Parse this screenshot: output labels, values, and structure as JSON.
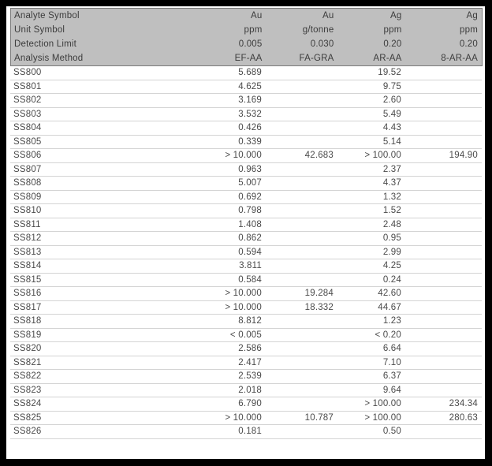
{
  "table": {
    "header_rows": [
      {
        "label": "Analyte Symbol",
        "values": [
          "Au",
          "Au",
          "Ag",
          "Ag"
        ]
      },
      {
        "label": "Unit Symbol",
        "values": [
          "ppm",
          "g/tonne",
          "ppm",
          "ppm"
        ]
      },
      {
        "label": "Detection Limit",
        "values": [
          "0.005",
          "0.030",
          "0.20",
          "0.20"
        ]
      },
      {
        "label": "Analysis Method",
        "values": [
          "EF-AA",
          "FA-GRA",
          "AR-AA",
          "8-AR-AA"
        ]
      }
    ],
    "samples": [
      {
        "id": "SS800",
        "values": [
          "5.689",
          "",
          "19.52",
          ""
        ]
      },
      {
        "id": "SS801",
        "values": [
          "4.625",
          "",
          "9.75",
          ""
        ]
      },
      {
        "id": "SS802",
        "values": [
          "3.169",
          "",
          "2.60",
          ""
        ]
      },
      {
        "id": "SS803",
        "values": [
          "3.532",
          "",
          "5.49",
          ""
        ]
      },
      {
        "id": "SS804",
        "values": [
          "0.426",
          "",
          "4.43",
          ""
        ]
      },
      {
        "id": "SS805",
        "values": [
          "0.339",
          "",
          "5.14",
          ""
        ]
      },
      {
        "id": "SS806",
        "values": [
          "> 10.000",
          "42.683",
          "> 100.00",
          "194.90"
        ]
      },
      {
        "id": "SS807",
        "values": [
          "0.963",
          "",
          "2.37",
          ""
        ]
      },
      {
        "id": "SS808",
        "values": [
          "5.007",
          "",
          "4.37",
          ""
        ]
      },
      {
        "id": "SS809",
        "values": [
          "0.692",
          "",
          "1.32",
          ""
        ]
      },
      {
        "id": "SS810",
        "values": [
          "0.798",
          "",
          "1.52",
          ""
        ]
      },
      {
        "id": "SS811",
        "values": [
          "1.408",
          "",
          "2.48",
          ""
        ]
      },
      {
        "id": "SS812",
        "values": [
          "0.862",
          "",
          "0.95",
          ""
        ]
      },
      {
        "id": "SS813",
        "values": [
          "0.594",
          "",
          "2.99",
          ""
        ]
      },
      {
        "id": "SS814",
        "values": [
          "3.811",
          "",
          "4.25",
          ""
        ]
      },
      {
        "id": "SS815",
        "values": [
          "0.584",
          "",
          "0.24",
          ""
        ]
      },
      {
        "id": "SS816",
        "values": [
          "> 10.000",
          "19.284",
          "42.60",
          ""
        ]
      },
      {
        "id": "SS817",
        "values": [
          "> 10.000",
          "18.332",
          "44.67",
          ""
        ]
      },
      {
        "id": "SS818",
        "values": [
          "8.812",
          "",
          "1.23",
          ""
        ]
      },
      {
        "id": "SS819",
        "values": [
          "< 0.005",
          "",
          "< 0.20",
          ""
        ]
      },
      {
        "id": "SS820",
        "values": [
          "2.586",
          "",
          "6.64",
          ""
        ]
      },
      {
        "id": "SS821",
        "values": [
          "2.417",
          "",
          "7.10",
          ""
        ]
      },
      {
        "id": "SS822",
        "values": [
          "2.539",
          "",
          "6.37",
          ""
        ]
      },
      {
        "id": "SS823",
        "values": [
          "2.018",
          "",
          "9.64",
          ""
        ]
      },
      {
        "id": "SS824",
        "values": [
          "6.790",
          "",
          "> 100.00",
          "234.34"
        ]
      },
      {
        "id": "SS825",
        "values": [
          "> 10.000",
          "10.787",
          "> 100.00",
          "280.63"
        ]
      },
      {
        "id": "SS826",
        "values": [
          "0.181",
          "",
          "0.50",
          ""
        ]
      }
    ]
  },
  "colors": {
    "frame": "#000000",
    "page_bg": "#ffffff",
    "header_bg": "#bfbfbf",
    "header_border": "#7a7a7a",
    "header_text": "#3c3c3c",
    "data_text": "#4a4a4a",
    "row_line": "#d4d4d4"
  }
}
